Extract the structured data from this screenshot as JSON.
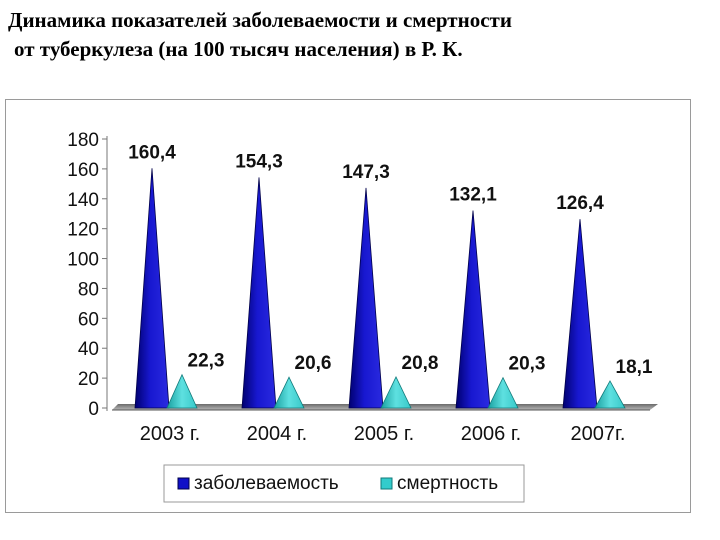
{
  "title": {
    "line1": "Динамика показателей заболеваемости и смертности",
    "line2": "от туберкулеза (на 100 тысяч населения)  в Р. К."
  },
  "chart_data": {
    "type": "bar",
    "shape": "pyramid",
    "categories": [
      "2003 г.",
      "2004 г.",
      "2005 г.",
      "2006 г.",
      "2007г."
    ],
    "series": [
      {
        "name": "заболеваемость",
        "values": [
          160.4,
          154.3,
          147.3,
          132.1,
          126.4
        ],
        "labels": [
          "160,4",
          "154,3",
          "147,3",
          "132,1",
          "126,4"
        ],
        "color": "#1010c8"
      },
      {
        "name": "смертность",
        "values": [
          22.3,
          20.6,
          20.8,
          20.3,
          18.1
        ],
        "labels": [
          "22,3",
          "20,6",
          "20,8",
          "20,3",
          "18,1"
        ],
        "color": "#33cccc"
      }
    ],
    "yticks": [
      "0",
      "20",
      "40",
      "60",
      "80",
      "100",
      "120",
      "140",
      "160",
      "180"
    ],
    "ylim": [
      0,
      180
    ],
    "legend_position": "bottom",
    "grid": false
  }
}
